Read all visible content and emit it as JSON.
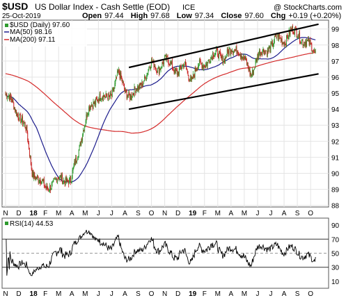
{
  "header": {
    "symbol": "$USD",
    "name": "US Dollar Index - Cash Settle (EOD)",
    "exchange": "ICE",
    "watermark": "@ StockCharts.com",
    "date": "25-Oct-2019",
    "open_label": "Open",
    "open": "97.44",
    "high_label": "High",
    "high": "97.68",
    "low_label": "Low",
    "low": "97.34",
    "close_label": "Close",
    "close": "97.60",
    "chg_label": "Chg",
    "chg": "+0.19 (+0.20%)"
  },
  "legend": {
    "price": "$USD (Daily) 97.60",
    "ma50": "MA(50) 98.16",
    "ma200": "MA(200) 97.11",
    "rsi": "RSI(14) 44.53"
  },
  "colors": {
    "up": "#2e9a2e",
    "down": "#c81e1e",
    "ma50": "#1c1c8c",
    "ma200": "#d42a2a",
    "rsi": "#000000",
    "grid": "#e4e4e4"
  },
  "chart_data": [
    {
      "type": "candlestick",
      "series": [
        {
          "name": "$USD (Daily)",
          "last": 97.6
        },
        {
          "name": "MA(50)",
          "last": 98.16
        },
        {
          "name": "MA(200)",
          "last": 97.11
        }
      ],
      "ylim": [
        88,
        99.5
      ],
      "yticks": [
        "99",
        "98",
        "97",
        "96",
        "95",
        "94",
        "93",
        "92",
        "91",
        "90",
        "89",
        "88"
      ],
      "xlabels": [
        "N",
        "D",
        "18",
        "F",
        "M",
        "A",
        "M",
        "J",
        "J",
        "A",
        "S",
        "O",
        "N",
        "D",
        "19",
        "F",
        "M",
        "A",
        "M",
        "J",
        "J",
        "A",
        "S",
        "O"
      ],
      "close_anchors": [
        {
          "m": 0,
          "v": 94.9
        },
        {
          "m": 0.6,
          "v": 94.3
        },
        {
          "m": 1.2,
          "v": 93.3
        },
        {
          "m": 1.6,
          "v": 92.5
        },
        {
          "m": 2.0,
          "v": 90.2
        },
        {
          "m": 2.5,
          "v": 89.5
        },
        {
          "m": 3.0,
          "v": 89.2
        },
        {
          "m": 3.6,
          "v": 89.3
        },
        {
          "m": 4.2,
          "v": 89.8
        },
        {
          "m": 4.9,
          "v": 89.4
        },
        {
          "m": 5.3,
          "v": 90.8
        },
        {
          "m": 5.8,
          "v": 92.6
        },
        {
          "m": 6.4,
          "v": 94.2
        },
        {
          "m": 7.0,
          "v": 94.8
        },
        {
          "m": 7.5,
          "v": 94.6
        },
        {
          "m": 8.0,
          "v": 95.0
        },
        {
          "m": 8.5,
          "v": 96.2
        },
        {
          "m": 9.0,
          "v": 95.2
        },
        {
          "m": 9.5,
          "v": 94.8
        },
        {
          "m": 10.0,
          "v": 95.3
        },
        {
          "m": 10.5,
          "v": 96.0
        },
        {
          "m": 11.0,
          "v": 96.8
        },
        {
          "m": 11.5,
          "v": 96.6
        },
        {
          "m": 12.0,
          "v": 97.0
        },
        {
          "m": 12.5,
          "v": 96.8
        },
        {
          "m": 13.0,
          "v": 96.3
        },
        {
          "m": 13.5,
          "v": 96.7
        },
        {
          "m": 14.0,
          "v": 95.9
        },
        {
          "m": 14.5,
          "v": 96.6
        },
        {
          "m": 15.0,
          "v": 96.9
        },
        {
          "m": 15.5,
          "v": 97.2
        },
        {
          "m": 16.0,
          "v": 97.5
        },
        {
          "m": 16.5,
          "v": 97.2
        },
        {
          "m": 17.0,
          "v": 97.6
        },
        {
          "m": 17.5,
          "v": 97.9
        },
        {
          "m": 18.0,
          "v": 97.0
        },
        {
          "m": 18.5,
          "v": 96.2
        },
        {
          "m": 19.0,
          "v": 97.3
        },
        {
          "m": 19.5,
          "v": 97.6
        },
        {
          "m": 20.0,
          "v": 98.0
        },
        {
          "m": 20.5,
          "v": 98.4
        },
        {
          "m": 21.0,
          "v": 98.3
        },
        {
          "m": 21.5,
          "v": 98.8
        },
        {
          "m": 22.0,
          "v": 98.8
        },
        {
          "m": 22.5,
          "v": 98.2
        },
        {
          "m": 23.0,
          "v": 97.9
        },
        {
          "m": 23.4,
          "v": 97.6
        }
      ],
      "trendlines": [
        {
          "name": "upper-channel",
          "from": {
            "m": 9.3,
            "v": 96.6
          },
          "to": {
            "m": 23.6,
            "v": 99.3
          }
        },
        {
          "name": "lower-channel",
          "from": {
            "m": 9.3,
            "v": 94.0
          },
          "to": {
            "m": 23.6,
            "v": 96.2
          }
        }
      ]
    },
    {
      "type": "line",
      "series": [
        {
          "name": "RSI(14)",
          "last": 44.53
        }
      ],
      "ylim": [
        0,
        100
      ],
      "yticks": [
        "90",
        "70",
        "50",
        "30",
        "10"
      ],
      "reference_lines": [
        70,
        50,
        30
      ],
      "xlabels": [
        "N",
        "D",
        "18",
        "F",
        "M",
        "A",
        "M",
        "J",
        "J",
        "A",
        "S",
        "O",
        "N",
        "D",
        "19",
        "F",
        "M",
        "A",
        "M",
        "J",
        "J",
        "A",
        "S",
        "O"
      ]
    }
  ]
}
